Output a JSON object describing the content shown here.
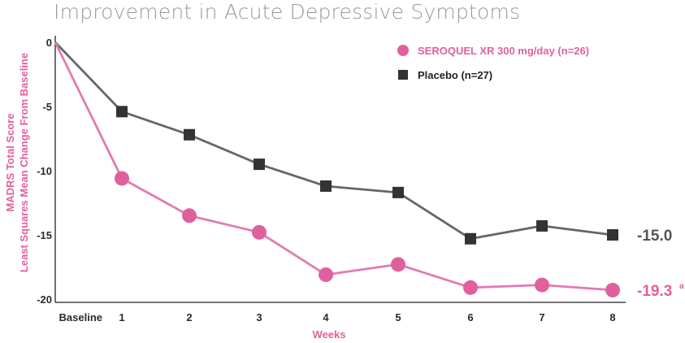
{
  "chart_data": {
    "type": "line",
    "title": "Improvement in Acute Depressive Symptoms",
    "xlabel": "Weeks",
    "ylabel_line1": "MADRS Total Score",
    "ylabel_line2": "Least Squares Mean Change From Baseline",
    "categories": [
      "Baseline",
      "1",
      "2",
      "3",
      "4",
      "5",
      "6",
      "7",
      "8"
    ],
    "yticks": [
      "0",
      "-5",
      "-10",
      "-15",
      "-20"
    ],
    "ylim": [
      -20,
      0
    ],
    "grid": false,
    "legend_position": "top-right",
    "series": [
      {
        "name": "SEROQUEL XR 300 mg/day (n=26)",
        "marker": "circle",
        "color": "#e0609e",
        "line_color": "#e27bb0",
        "values": [
          0,
          -10.6,
          -13.5,
          -14.8,
          -18.1,
          -17.3,
          -19.1,
          -18.9,
          -19.3
        ],
        "end_label": "-19.3",
        "end_label_sup": "a"
      },
      {
        "name": "Placebo (n=27)",
        "marker": "square",
        "color": "#333333",
        "line_color": "#666666",
        "values": [
          0,
          -5.4,
          -7.2,
          -9.5,
          -11.2,
          -11.7,
          -15.3,
          -14.3,
          -15.0
        ],
        "end_label": "-15.0",
        "end_label_sup": ""
      }
    ]
  }
}
